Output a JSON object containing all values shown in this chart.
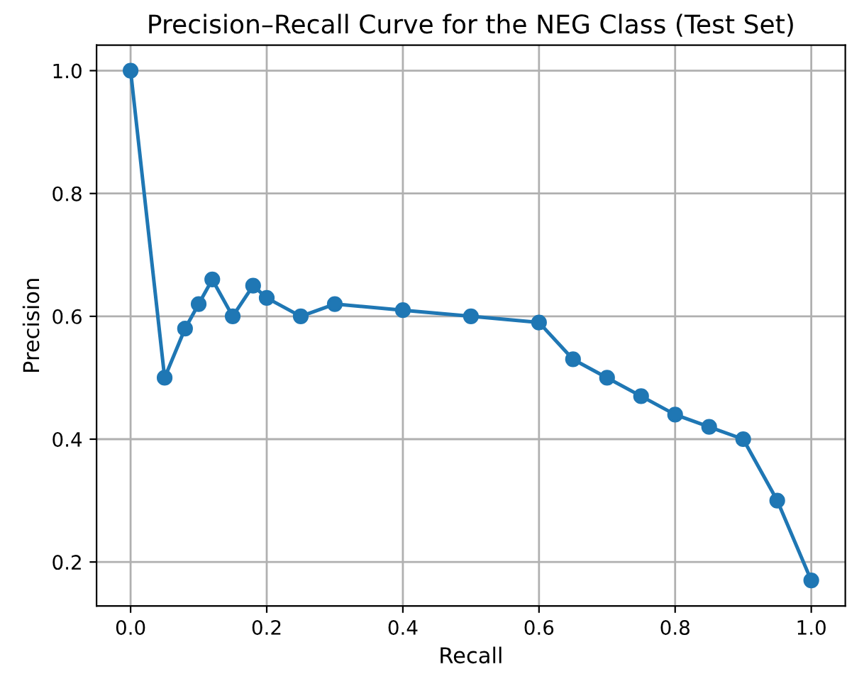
{
  "chart_data": {
    "type": "line",
    "title": "Precision–Recall Curve for the NEG Class (Test Set)",
    "xlabel": "Recall",
    "ylabel": "Precision",
    "x": [
      0,
      0.05,
      0.08,
      0.1,
      0.12,
      0.15,
      0.18,
      0.2,
      0.25,
      0.3,
      0.4,
      0.5,
      0.6,
      0.65,
      0.7,
      0.75,
      0.8,
      0.85,
      0.9,
      0.95,
      1.0
    ],
    "series": [
      {
        "color": "#1f77b4",
        "values": [
          1.0,
          0.5,
          0.58,
          0.62,
          0.66,
          0.6,
          0.65,
          0.63,
          0.6,
          0.62,
          0.61,
          0.6,
          0.59,
          0.53,
          0.5,
          0.47,
          0.44,
          0.42,
          0.4,
          0.3,
          0.17
        ]
      }
    ],
    "xlim": [
      -0.05,
      1.05
    ],
    "ylim": [
      0.1285,
      1.0415
    ],
    "xticks": [
      {
        "value": 0,
        "label": "0.0"
      },
      {
        "value": 0.2,
        "label": "0.2"
      },
      {
        "value": 0.4,
        "label": "0.4"
      },
      {
        "value": 0.6,
        "label": "0.6"
      },
      {
        "value": 0.8,
        "label": "0.8"
      },
      {
        "value": 1,
        "label": "1.0"
      }
    ],
    "yticks": [
      {
        "value": 0.2,
        "label": "0.2"
      },
      {
        "value": 0.4,
        "label": "0.4"
      },
      {
        "value": 0.6,
        "label": "0.6"
      },
      {
        "value": 0.8,
        "label": "0.8"
      },
      {
        "value": 1,
        "label": "1.0"
      }
    ],
    "grid": true,
    "marker": "circle",
    "line_style": "solid"
  }
}
